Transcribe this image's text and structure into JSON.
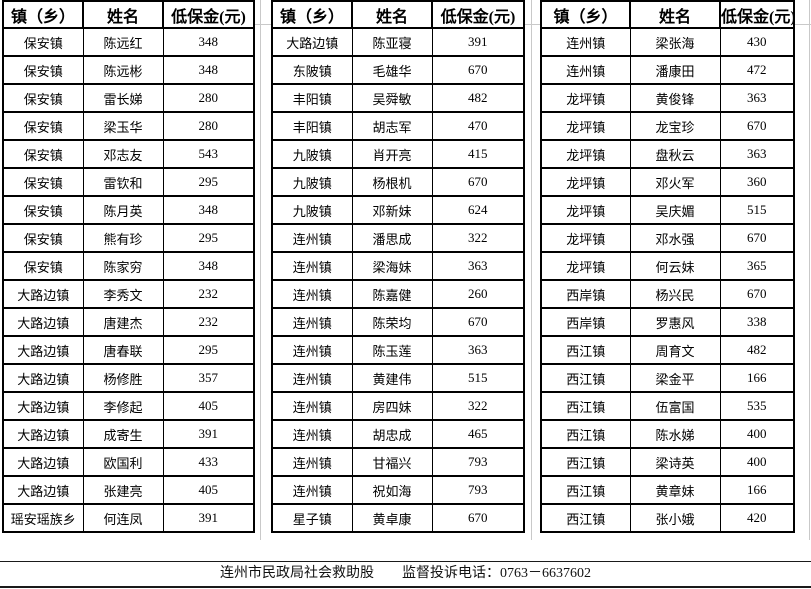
{
  "columns": {
    "town": "镇（乡）",
    "name": "姓名",
    "amount": "低保金(元)"
  },
  "tables": [
    {
      "rows": [
        [
          "保安镇",
          "陈远红",
          "348"
        ],
        [
          "保安镇",
          "陈远彬",
          "348"
        ],
        [
          "保安镇",
          "雷长娣",
          "280"
        ],
        [
          "保安镇",
          "梁玉华",
          "280"
        ],
        [
          "保安镇",
          "邓志友",
          "543"
        ],
        [
          "保安镇",
          "雷钦和",
          "295"
        ],
        [
          "保安镇",
          "陈月英",
          "348"
        ],
        [
          "保安镇",
          "熊有珍",
          "295"
        ],
        [
          "保安镇",
          "陈家穷",
          "348"
        ],
        [
          "大路边镇",
          "李秀文",
          "232"
        ],
        [
          "大路边镇",
          "唐建杰",
          "232"
        ],
        [
          "大路边镇",
          "唐春联",
          "295"
        ],
        [
          "大路边镇",
          "杨修胜",
          "357"
        ],
        [
          "大路边镇",
          "李修起",
          "405"
        ],
        [
          "大路边镇",
          "成寄生",
          "391"
        ],
        [
          "大路边镇",
          "欧国利",
          "433"
        ],
        [
          "大路边镇",
          "张建亮",
          "405"
        ],
        [
          "瑶安瑶族乡",
          "何连凤",
          "391"
        ]
      ]
    },
    {
      "rows": [
        [
          "大路边镇",
          "陈亚寝",
          "391"
        ],
        [
          "东陂镇",
          "毛雄华",
          "670"
        ],
        [
          "丰阳镇",
          "吴舜敏",
          "482"
        ],
        [
          "丰阳镇",
          "胡志军",
          "470"
        ],
        [
          "九陂镇",
          "肖开亮",
          "415"
        ],
        [
          "九陂镇",
          "杨根机",
          "670"
        ],
        [
          "九陂镇",
          "邓新妹",
          "624"
        ],
        [
          "连州镇",
          "潘思成",
          "322"
        ],
        [
          "连州镇",
          "梁海妹",
          "363"
        ],
        [
          "连州镇",
          "陈嘉健",
          "260"
        ],
        [
          "连州镇",
          "陈荣均",
          "670"
        ],
        [
          "连州镇",
          "陈玉莲",
          "363"
        ],
        [
          "连州镇",
          "黄建伟",
          "515"
        ],
        [
          "连州镇",
          "房四妹",
          "322"
        ],
        [
          "连州镇",
          "胡忠成",
          "465"
        ],
        [
          "连州镇",
          "甘福兴",
          "793"
        ],
        [
          "连州镇",
          "祝如海",
          "793"
        ],
        [
          "星子镇",
          "黄卓康",
          "670"
        ]
      ]
    },
    {
      "rows": [
        [
          "连州镇",
          "梁张海",
          "430"
        ],
        [
          "连州镇",
          "潘康田",
          "472"
        ],
        [
          "龙坪镇",
          "黄俊锋",
          "363"
        ],
        [
          "龙坪镇",
          "龙宝珍",
          "670"
        ],
        [
          "龙坪镇",
          "盘秋云",
          "363"
        ],
        [
          "龙坪镇",
          "邓火军",
          "360"
        ],
        [
          "龙坪镇",
          "吴庆媚",
          "515"
        ],
        [
          "龙坪镇",
          "邓水强",
          "670"
        ],
        [
          "龙坪镇",
          "何云妹",
          "365"
        ],
        [
          "西岸镇",
          "杨兴民",
          "670"
        ],
        [
          "西岸镇",
          "罗惠风",
          "338"
        ],
        [
          "西江镇",
          "周育文",
          "482"
        ],
        [
          "西江镇",
          "梁金平",
          "166"
        ],
        [
          "西江镇",
          "伍富国",
          "535"
        ],
        [
          "西江镇",
          "陈水娣",
          "400"
        ],
        [
          "西江镇",
          "梁诗英",
          "400"
        ],
        [
          "西江镇",
          "黄章妹",
          "166"
        ],
        [
          "西江镇",
          "张小娥",
          "420"
        ]
      ]
    }
  ],
  "footer": {
    "department": "连州市民政局社会救助股",
    "hotline": "监督投诉电话：0763－6637602"
  }
}
